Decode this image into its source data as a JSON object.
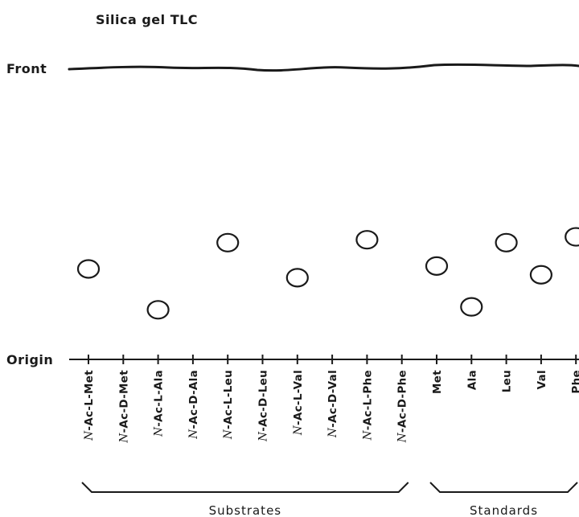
{
  "title": "Silica gel TLC",
  "front_label": "Front",
  "origin_label": "Origin",
  "lanes": [
    {
      "prefix": "N",
      "label": "-Ac-L-Met",
      "spot": true,
      "rf": 0.31
    },
    {
      "prefix": "N",
      "label": "-Ac-D-Met",
      "spot": false
    },
    {
      "prefix": "N",
      "label": "-Ac-L-Ala",
      "spot": true,
      "rf": 0.17
    },
    {
      "prefix": "N",
      "label": "-Ac-D-Ala",
      "spot": false
    },
    {
      "prefix": "N",
      "label": "-Ac-L-Leu",
      "spot": true,
      "rf": 0.4
    },
    {
      "prefix": "N",
      "label": "-Ac-D-Leu",
      "spot": false
    },
    {
      "prefix": "N",
      "label": "-Ac-L-Val",
      "spot": true,
      "rf": 0.28
    },
    {
      "prefix": "N",
      "label": "-Ac-D-Val",
      "spot": false
    },
    {
      "prefix": "N",
      "label": "-Ac-L-Phe",
      "spot": true,
      "rf": 0.41
    },
    {
      "prefix": "N",
      "label": "-Ac-D-Phe",
      "spot": false
    },
    {
      "prefix": "",
      "label": "Met",
      "spot": true,
      "rf": 0.32
    },
    {
      "prefix": "",
      "label": "Ala",
      "spot": true,
      "rf": 0.18
    },
    {
      "prefix": "",
      "label": "Leu",
      "spot": true,
      "rf": 0.4
    },
    {
      "prefix": "",
      "label": "Val",
      "spot": true,
      "rf": 0.29
    },
    {
      "prefix": "",
      "label": "Phe",
      "spot": true,
      "rf": 0.42
    }
  ],
  "groups": [
    {
      "label": "Substrates",
      "first_lane": 0,
      "last_lane": 9
    },
    {
      "label": "Standards",
      "first_lane": 10,
      "last_lane": 14
    }
  ],
  "colors": {
    "ink": "#1a1a1a",
    "background": "#ffffff"
  }
}
